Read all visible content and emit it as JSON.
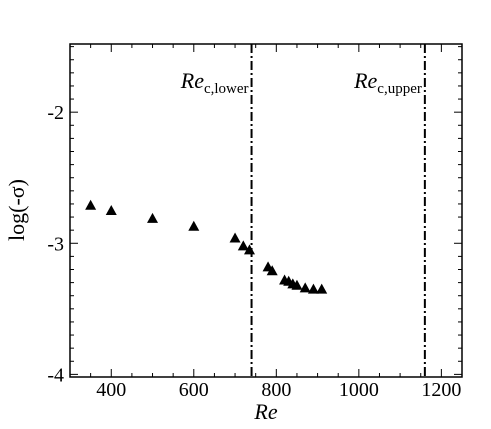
{
  "chart_data": {
    "type": "scatter",
    "xlabel": "Re",
    "ylabel": "log(-σ)",
    "xlim": [
      300,
      1250
    ],
    "ylim": [
      -4.02,
      -1.48
    ],
    "x_ticks": [
      400,
      600,
      800,
      1000,
      1200
    ],
    "y_ticks": [
      -4,
      -3,
      -2
    ],
    "x_tick_labels": [
      "400",
      "600",
      "800",
      "1000",
      "1200"
    ],
    "y_tick_labels": [
      "-4",
      "-3",
      "-2"
    ],
    "grid": false,
    "marker": "filled-triangle",
    "series": [
      {
        "x": [
          350,
          400,
          500,
          600,
          700,
          720,
          735,
          780,
          790,
          820,
          830,
          840,
          850,
          870,
          890,
          910
        ],
        "y": [
          -2.71,
          -2.75,
          -2.81,
          -2.87,
          -2.96,
          -3.02,
          -3.05,
          -3.18,
          -3.21,
          -3.28,
          -3.29,
          -3.31,
          -3.32,
          -3.34,
          -3.35,
          -3.35
        ]
      }
    ],
    "reference_lines": [
      {
        "x": 740,
        "style": "dash-dot",
        "label_main": "Re",
        "label_sub": "c,lower"
      },
      {
        "x": 1160,
        "style": "dash-dot",
        "label_main": "Re",
        "label_sub": "c,upper"
      }
    ]
  }
}
